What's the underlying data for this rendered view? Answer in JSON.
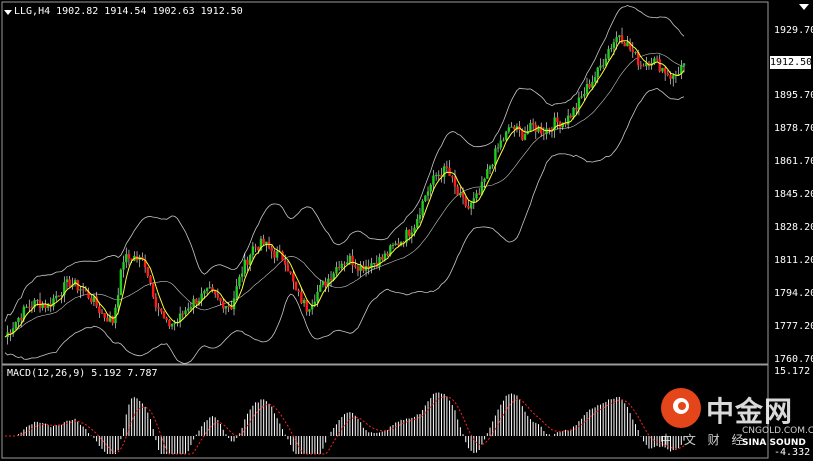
{
  "header": {
    "symbol_line": "LLG,H4  1902.82 1914.54 1902.63 1912.50"
  },
  "macd": {
    "label": "MACD(12,26,9) 5.192 7.787",
    "axis_top": "15.172",
    "axis_bottom": "-4.332"
  },
  "current_price": "1912.50",
  "watermark": {
    "brand": "中金网",
    "sub": "中 文 财 经",
    "url": "CNGOLD.COM.CN",
    "sina": "SINA SOUND"
  },
  "colors": {
    "background": "#000000",
    "bull": "#22cc22",
    "bear": "#ff1a1a",
    "bands": "#c8c8c8",
    "ma": "#ffff33",
    "macd_hist": "#ffffff",
    "macd_signal": "#ff2020"
  },
  "chart_data": [
    {
      "type": "candlestick",
      "title": "LLG,H4",
      "ylim": [
        1760.7,
        1938.0
      ],
      "yticks": [
        "1929.70",
        "1912.50",
        "1895.70",
        "1878.70",
        "1861.70",
        "1845.20",
        "1828.20",
        "1811.20",
        "1794.20",
        "1777.20",
        "1760.70"
      ],
      "last_ohlc": {
        "open": 1902.82,
        "high": 1914.54,
        "low": 1902.63,
        "close": 1912.5
      },
      "grid": false,
      "overlays": [
        "bollinger-bands",
        "moving-average"
      ],
      "approx_close_series": [
        1772,
        1780,
        1787,
        1790,
        1788,
        1795,
        1800,
        1797,
        1792,
        1784,
        1780,
        1812,
        1813,
        1810,
        1790,
        1778,
        1780,
        1788,
        1792,
        1795,
        1790,
        1788,
        1806,
        1818,
        1820,
        1815,
        1812,
        1795,
        1787,
        1795,
        1802,
        1810,
        1812,
        1808,
        1810,
        1812,
        1818,
        1823,
        1830,
        1845,
        1855,
        1858,
        1845,
        1838,
        1845,
        1860,
        1872,
        1880,
        1876,
        1880,
        1878,
        1882,
        1883,
        1890,
        1900,
        1908,
        1920,
        1928,
        1920,
        1912,
        1915,
        1910,
        1905,
        1912.5
      ]
    },
    {
      "type": "bar",
      "title": "MACD(12,26,9)",
      "series": [
        {
          "name": "MACD",
          "current": 5.192
        },
        {
          "name": "Signal",
          "current": 7.787
        }
      ],
      "ylim": [
        -4.332,
        15.172
      ]
    }
  ]
}
